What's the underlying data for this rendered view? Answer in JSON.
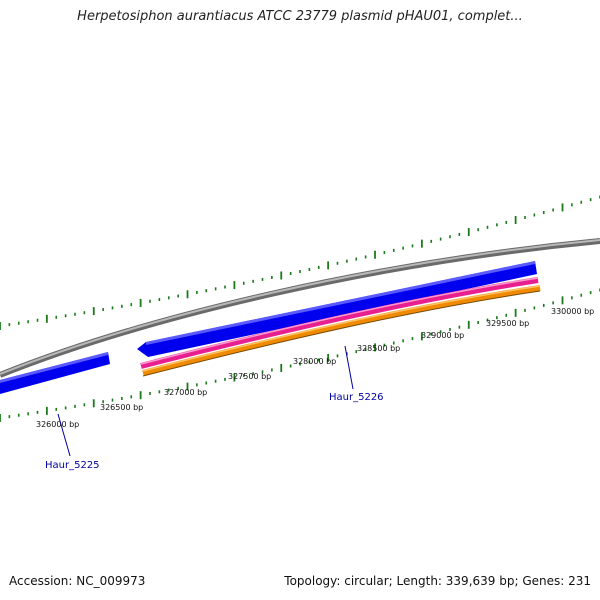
{
  "title": "Herpetosiphon aurantiacus ATCC 23779 plasmid pHAU01, complet...",
  "footer": {
    "accession": "Accession: NC_009973",
    "summary": "Topology: circular; Length: 339,639 bp; Genes: 231"
  },
  "scale_labels": [
    "326000 bp",
    "326500 bp",
    "327000 bp",
    "327500 bp",
    "328000 bp",
    "328500 bp",
    "329000 bp",
    "329500 bp",
    "330000 bp"
  ],
  "genes": [
    {
      "name": "Haur_5225"
    },
    {
      "name": "Haur_5226"
    }
  ],
  "colors": {
    "backbone": "#8c8c8c",
    "forward_gene": "#0000ee",
    "magenta_track": "#e8208f",
    "orange_track": "#f08a00",
    "tick": "#1a7a1a",
    "gene_label": "#0000a0"
  }
}
